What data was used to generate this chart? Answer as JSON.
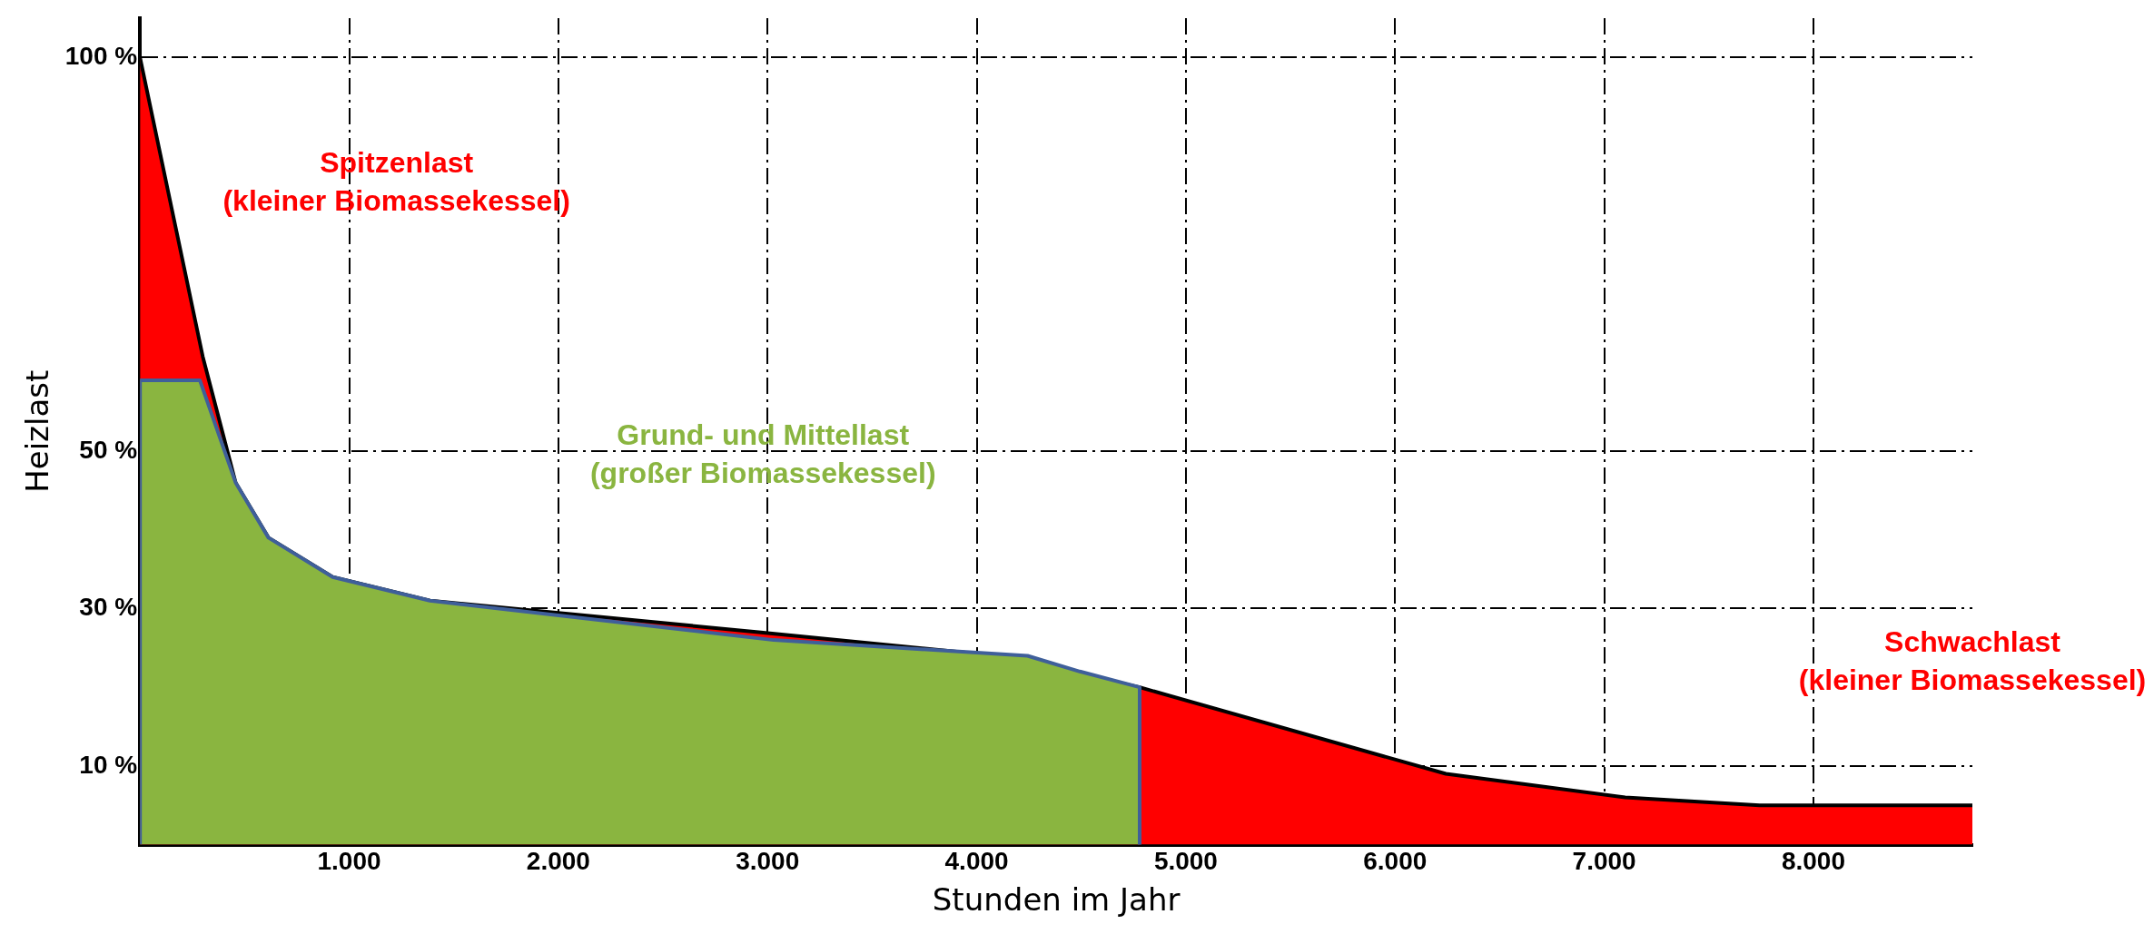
{
  "chart_data": {
    "type": "area",
    "xlabel": "Stunden im Jahr",
    "ylabel": "Heizlast",
    "xlim": [
      0,
      8760
    ],
    "xticks": [
      {
        "value": 1000,
        "label": "1.000"
      },
      {
        "value": 2000,
        "label": "2.000"
      },
      {
        "value": 3000,
        "label": "3.000"
      },
      {
        "value": 4000,
        "label": "4.000"
      },
      {
        "value": 5000,
        "label": "5.000"
      },
      {
        "value": 6000,
        "label": "6.000"
      },
      {
        "value": 7000,
        "label": "7.000"
      },
      {
        "value": 8000,
        "label": "8.000"
      }
    ],
    "ylim": [
      0,
      105
    ],
    "yticks": [
      {
        "value": 10,
        "label": "10 %"
      },
      {
        "value": 30,
        "label": "30 %"
      },
      {
        "value": 50,
        "label": "50 %"
      },
      {
        "value": 100,
        "label": "100 %"
      }
    ],
    "grid": true,
    "line_style": "dashed",
    "series": [
      {
        "color": "#ff0000",
        "x": [
          0,
          300,
          457,
          614,
          921,
          1386,
          2957,
          4100,
          4779,
          6243,
          7100,
          7743,
          8760
        ],
        "values": [
          100,
          62,
          46,
          39,
          34,
          31,
          27,
          24,
          20,
          9,
          6,
          5,
          5
        ]
      },
      {
        "color": "#8ab540",
        "x": [
          0,
          0,
          286,
          457,
          614,
          921,
          1386,
          3029,
          4243,
          4493,
          4779,
          4779
        ],
        "values": [
          0,
          59,
          59,
          46,
          39,
          34,
          31,
          26,
          24,
          22,
          20,
          0
        ]
      }
    ],
    "annotations": [
      "Spitzenlast\n(kleiner Biomassekessel)",
      "Grund- und Mittellast\n(großer Biomassekessel)",
      "Schwachlast\n(kleiner Biomassekessel)"
    ]
  }
}
